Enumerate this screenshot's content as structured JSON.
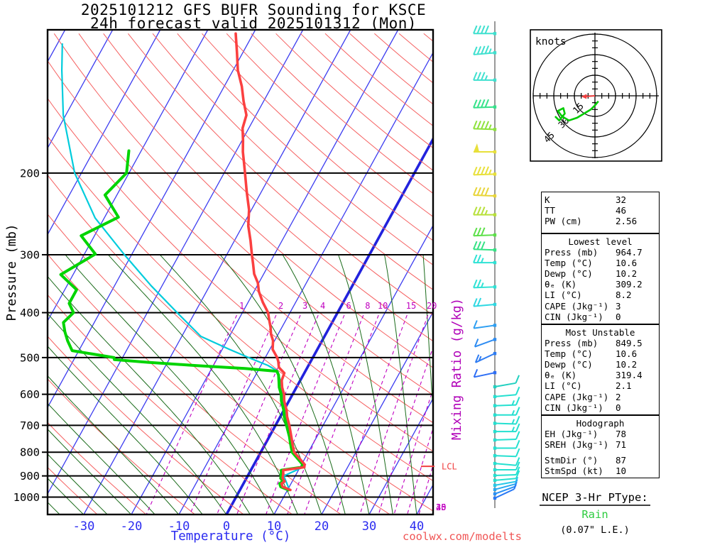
{
  "header": {
    "title_line1": "2025101212 GFS BUFR Sounding for KSCE",
    "title_line2": "24h forecast valid 2025101312 (Mon)"
  },
  "watermark": "coolwx.com/modelts",
  "ptype": {
    "heading": "NCEP 3-Hr PType:",
    "value": "Rain",
    "amount": "(0.07\" L.E.)",
    "value_color": "#2ecc40"
  },
  "colors": {
    "isotherm": "#3c3cf0",
    "isotherm_zero": "#2222dd",
    "dry_adiabat": "#f56060",
    "moist_adiabat": "#1a6b1a",
    "mixing_ratio": "#c000c0",
    "temperature_trace": "#fb4040",
    "dewpoint_trace": "#00d400",
    "wetbulb_trace": "#00ccdc",
    "axis_temp_label": "#2b2bf0",
    "pressure_label": "#000000",
    "watermark": "#f05555",
    "lcl": "#f04040",
    "hodograph_trace": "#00cc00",
    "storm_arrow": "#f04040"
  },
  "chart_data": {
    "type": "skewt-log-p-sounding",
    "station": "KSCE",
    "pressure_axis": {
      "label": "Pressure (mb)",
      "ticks": [
        200,
        300,
        400,
        500,
        600,
        700,
        800,
        900,
        1000
      ],
      "range_mb": [
        100,
        1091
      ],
      "scale": "log"
    },
    "temp_axis": {
      "label": "Temperature (°C)",
      "ticks": [
        -30,
        -20,
        -10,
        0,
        10,
        20,
        30,
        40
      ],
      "units": "°C"
    },
    "isotherms": {
      "min": -120,
      "max": 40,
      "step": 10,
      "highlight_value": 0
    },
    "dry_adiabats_theta_k": {
      "min": 230,
      "max": 510,
      "step": 10
    },
    "moist_adiabats_start_c": {
      "min": -45,
      "max": 45,
      "step": 5,
      "top_mb": 300
    },
    "mixing_ratio": {
      "label": "Mixing Ratio (g/kg)",
      "upper_label_values": [
        1,
        2,
        3,
        4,
        6,
        8,
        10,
        15,
        20
      ],
      "right_label_values": [
        25,
        30,
        35,
        40
      ],
      "lines_g_per_kg": [
        1,
        2,
        3,
        4,
        6,
        8,
        10,
        15,
        20,
        25,
        30,
        35,
        40
      ]
    },
    "lcl": {
      "label": "LCL",
      "pressure_mb": 858
    },
    "profiles": {
      "temperature_p_c": [
        [
          965,
          10.6
        ],
        [
          950,
          8.6
        ],
        [
          935,
          8.0
        ],
        [
          925,
          8.4
        ],
        [
          910,
          7.6
        ],
        [
          890,
          7.2
        ],
        [
          875,
          6.8
        ],
        [
          862,
          10.9
        ],
        [
          849.5,
          10.6
        ],
        [
          830,
          9.2
        ],
        [
          800,
          7.0
        ],
        [
          770,
          5.8
        ],
        [
          740,
          4.6
        ],
        [
          700,
          2.9
        ],
        [
          670,
          1.4
        ],
        [
          650,
          0.6
        ],
        [
          620,
          -1.0
        ],
        [
          600,
          -1.8
        ],
        [
          580,
          -3.0
        ],
        [
          560,
          -3.9
        ],
        [
          540,
          -4.2
        ],
        [
          525,
          -6.0
        ],
        [
          510,
          -6.8
        ],
        [
          500,
          -7.5
        ],
        [
          480,
          -9.4
        ],
        [
          460,
          -10.3
        ],
        [
          445,
          -11.5
        ],
        [
          430,
          -12.4
        ],
        [
          415,
          -13.5
        ],
        [
          400,
          -14.6
        ],
        [
          380,
          -16.9
        ],
        [
          360,
          -19.0
        ],
        [
          345,
          -20.2
        ],
        [
          330,
          -22.0
        ],
        [
          315,
          -23.3
        ],
        [
          300,
          -24.7
        ],
        [
          280,
          -26.6
        ],
        [
          260,
          -28.8
        ],
        [
          240,
          -30.5
        ],
        [
          220,
          -33.0
        ],
        [
          200,
          -35.6
        ],
        [
          190,
          -37.0
        ],
        [
          180,
          -38.5
        ],
        [
          170,
          -39.8
        ],
        [
          160,
          -41.3
        ],
        [
          150,
          -42.0
        ],
        [
          140,
          -44.2
        ],
        [
          130,
          -46.3
        ],
        [
          120,
          -49.0
        ],
        [
          110,
          -51.2
        ],
        [
          100,
          -53.7
        ]
      ],
      "dewpoint_p_c": [
        [
          965,
          10.2
        ],
        [
          950,
          8.2
        ],
        [
          935,
          7.6
        ],
        [
          925,
          8.0
        ],
        [
          910,
          7.2
        ],
        [
          890,
          6.8
        ],
        [
          875,
          6.4
        ],
        [
          862,
          10.4
        ],
        [
          849.5,
          10.2
        ],
        [
          830,
          8.8
        ],
        [
          800,
          6.6
        ],
        [
          770,
          5.4
        ],
        [
          740,
          4.2
        ],
        [
          700,
          2.3
        ],
        [
          670,
          0.8
        ],
        [
          650,
          0.0
        ],
        [
          620,
          -1.6
        ],
        [
          600,
          -2.4
        ],
        [
          580,
          -3.6
        ],
        [
          560,
          -4.5
        ],
        [
          545,
          -5.2
        ],
        [
          535,
          -6.0
        ],
        [
          528,
          -13.0
        ],
        [
          520,
          -24.0
        ],
        [
          512,
          -34.0
        ],
        [
          505,
          -41.5
        ],
        [
          500,
          -41.8
        ],
        [
          483,
          -51.4
        ],
        [
          460,
          -53.5
        ],
        [
          440,
          -55.1
        ],
        [
          420,
          -56.5
        ],
        [
          400,
          -55.5
        ],
        [
          382,
          -57.5
        ],
        [
          357,
          -57.5
        ],
        [
          331,
          -62.6
        ],
        [
          299,
          -57.7
        ],
        [
          273,
          -62.8
        ],
        [
          249,
          -57.1
        ],
        [
          223,
          -62.5
        ],
        [
          200,
          -60.5
        ],
        [
          179,
          -62.6
        ]
      ],
      "wetbulb_p_c": [
        [
          965,
          10.4
        ],
        [
          900,
          7.6
        ],
        [
          862,
          10.6
        ],
        [
          849.5,
          10.4
        ],
        [
          800,
          6.8
        ],
        [
          700,
          2.6
        ],
        [
          650,
          0.3
        ],
        [
          600,
          -2.1
        ],
        [
          560,
          -4.2
        ],
        [
          535,
          -5.8
        ],
        [
          520,
          -8.5
        ],
        [
          500,
          -13.5
        ],
        [
          480,
          -18.5
        ],
        [
          450,
          -26.0
        ],
        [
          400,
          -33.7
        ],
        [
          350,
          -42.3
        ],
        [
          300,
          -51.5
        ],
        [
          250,
          -61.9
        ],
        [
          200,
          -71.4
        ],
        [
          150,
          -80.5
        ],
        [
          120,
          -86.0
        ],
        [
          105,
          -89.0
        ]
      ]
    },
    "wind_barbs": [
      [
        100,
        40,
        270,
        "#3fe0cf"
      ],
      [
        110,
        45,
        265,
        "#3fe0cf"
      ],
      [
        126,
        35,
        270,
        "#3fe0cf"
      ],
      [
        144,
        40,
        268,
        "#35e28a"
      ],
      [
        161,
        45,
        272,
        "#8ee23c"
      ],
      [
        180,
        50,
        270,
        "#e8e03a"
      ],
      [
        201,
        45,
        268,
        "#e8e03a"
      ],
      [
        224,
        40,
        272,
        "#e8d53a"
      ],
      [
        246,
        35,
        270,
        "#b8e03a"
      ],
      [
        272,
        30,
        268,
        "#5ce049"
      ],
      [
        293,
        30,
        272,
        "#35e285"
      ],
      [
        312,
        25,
        270,
        "#2fe2d5"
      ],
      [
        352,
        25,
        268,
        "#2fe2d5"
      ],
      [
        384,
        20,
        265,
        "#2fd8e2"
      ],
      [
        426,
        10,
        262,
        "#2e9ff2"
      ],
      [
        457,
        10,
        250,
        "#2e8cf2"
      ],
      [
        490,
        15,
        245,
        "#2e7cf2"
      ],
      [
        539,
        10,
        258,
        "#2e6ef5"
      ],
      [
        578,
        10,
        80,
        "#22d0c0"
      ],
      [
        607,
        10,
        85,
        "#25e0d0"
      ],
      [
        635,
        15,
        88,
        "#25e0d0"
      ],
      [
        665,
        15,
        90,
        "#25e0d0"
      ],
      [
        693,
        15,
        92,
        "#25e0d0"
      ],
      [
        722,
        15,
        90,
        "#25e0d0"
      ],
      [
        753,
        12,
        88,
        "#25e0d0"
      ],
      [
        784,
        12,
        90,
        "#25e0d0"
      ],
      [
        814,
        10,
        92,
        "#25e0d0"
      ],
      [
        846,
        10,
        95,
        "#25e0d0"
      ],
      [
        873,
        10,
        90,
        "#25e0d0"
      ],
      [
        898,
        10,
        88,
        "#25e0d0"
      ],
      [
        920,
        10,
        85,
        "#25e0d0"
      ],
      [
        943,
        8,
        80,
        "#28c8e8"
      ],
      [
        963,
        5,
        75,
        "#28a8f0"
      ],
      [
        984,
        5,
        70,
        "#2890f5"
      ],
      [
        1005,
        5,
        65,
        "#2878f5"
      ]
    ],
    "hodograph": {
      "unit_label": "knots",
      "ring_values_kt": [
        15,
        30,
        45
      ],
      "tick_step_kt": 5,
      "trace_uv_kt": [
        [
          2.5,
          -4
        ],
        [
          0,
          -7
        ],
        [
          -3,
          -10
        ],
        [
          -8,
          -13
        ],
        [
          -13,
          -16
        ],
        [
          -19,
          -18
        ],
        [
          -24,
          -15
        ],
        [
          -27,
          -11
        ],
        [
          -23,
          -9
        ],
        [
          -22,
          -13
        ],
        [
          -26,
          -18
        ],
        [
          -29,
          -15
        ]
      ],
      "storm_motion": {
        "dir_deg": 87,
        "speed_kt": 10
      }
    }
  },
  "stats_panels": [
    {
      "rows": [
        [
          "K",
          "32"
        ],
        [
          "TT",
          "46"
        ],
        [
          "PW (cm)",
          "2.56"
        ]
      ]
    },
    {
      "title": "Lowest level",
      "rows": [
        [
          "Press (mb)",
          "964.7"
        ],
        [
          "Temp (°C)",
          "10.6"
        ],
        [
          "Dewp (°C)",
          "10.2"
        ],
        [
          "θₑ (K)",
          "309.2"
        ],
        [
          "LI (°C)",
          "8.2"
        ],
        [
          "CAPE (Jkg⁻¹)",
          "3"
        ],
        [
          "CIN (Jkg⁻¹)",
          "0"
        ]
      ]
    },
    {
      "title": "Most Unstable",
      "rows": [
        [
          "Press (mb)",
          "849.5"
        ],
        [
          "Temp (°C)",
          "10.6"
        ],
        [
          "Dewp (°C)",
          "10.2"
        ],
        [
          "θₑ (K)",
          "319.4"
        ],
        [
          "LI (°C)",
          "2.1"
        ],
        [
          "CAPE (Jkg⁻¹)",
          "2"
        ],
        [
          "CIN (Jkg⁻¹)",
          "0"
        ]
      ]
    },
    {
      "title": "Hodograph",
      "gap_after": 1,
      "rows": [
        [
          "EH (Jkg⁻¹)",
          "78"
        ],
        [
          "SREH (Jkg⁻¹)",
          "71"
        ],
        [
          "StmDir (°)",
          "87"
        ],
        [
          "StmSpd (kt)",
          "10"
        ]
      ]
    }
  ]
}
